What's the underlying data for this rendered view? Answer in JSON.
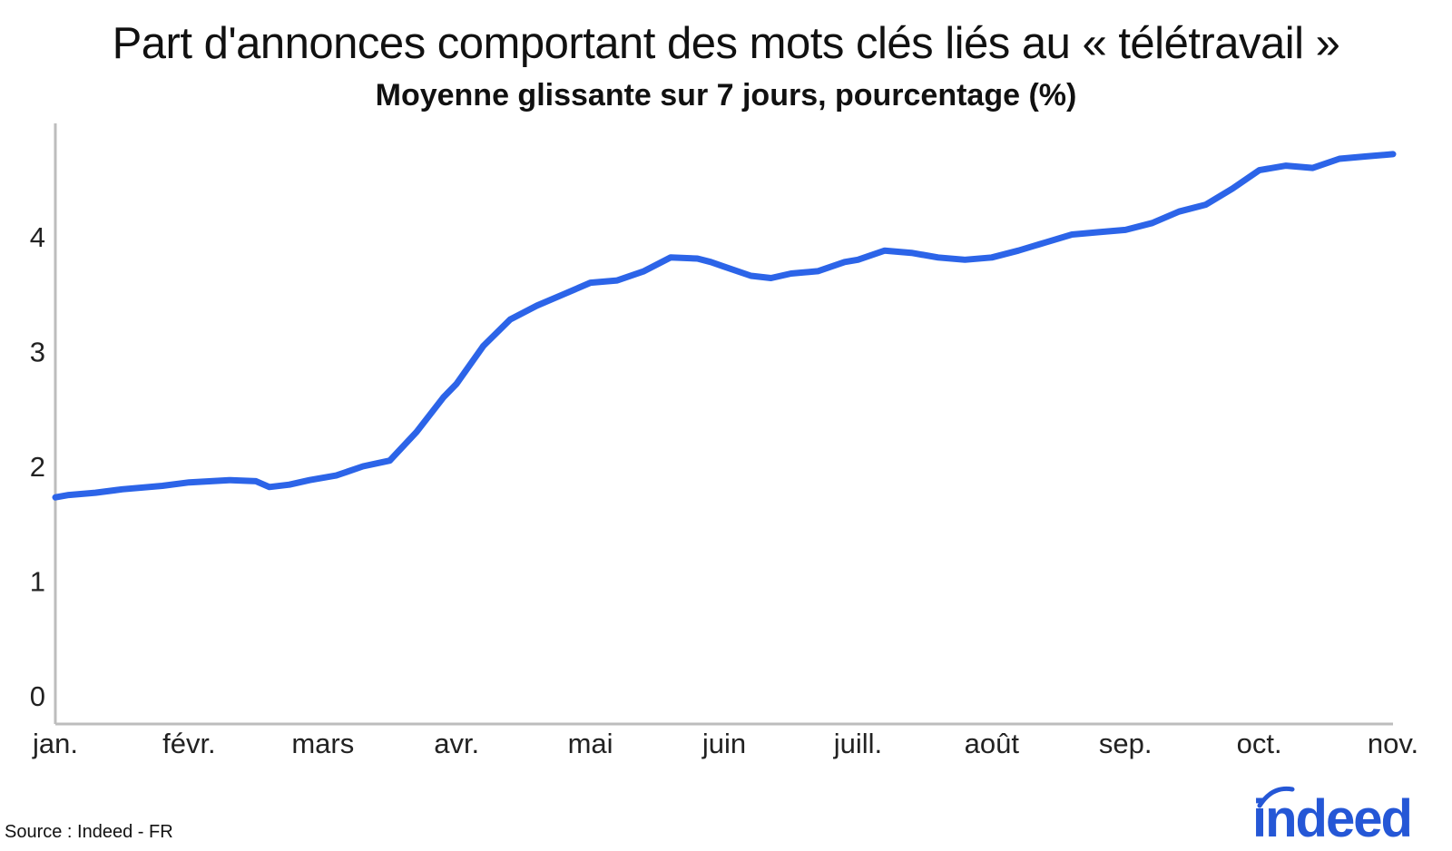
{
  "header": {
    "title": "Part d'annonces comportant des mots clés liés au « télétravail »",
    "subtitle": "Moyenne glissante sur 7 jours, pourcentage (%)"
  },
  "footer": {
    "source": "Source : Indeed - FR",
    "logo_text": "indeed"
  },
  "colors": {
    "line": "#2c64e8",
    "axis": "#bdbdbd",
    "logo": "#2557d6"
  },
  "chart_data": {
    "type": "line",
    "title": "Part d'annonces comportant des mots clés liés au « télétravail »",
    "subtitle": "Moyenne glissante sur 7 jours, pourcentage (%)",
    "xlabel": "",
    "ylabel": "",
    "ylim": [
      0,
      5
    ],
    "yticks": [
      0,
      1,
      2,
      3,
      4
    ],
    "grid": false,
    "x_ticks": [
      "jan.",
      "févr.",
      "mars",
      "avr.",
      "mai",
      "juin",
      "juill.",
      "août",
      "sep.",
      "oct.",
      "nov."
    ],
    "series": [
      {
        "x": [
          0,
          0.1,
          0.3,
          0.5,
          0.8,
          1.0,
          1.3,
          1.5,
          1.6,
          1.75,
          1.9,
          2.1,
          2.3,
          2.5,
          2.7,
          2.9,
          3.0,
          3.2,
          3.4,
          3.6,
          3.8,
          4.0,
          4.2,
          4.4,
          4.6,
          4.8,
          4.9,
          5.0,
          5.2,
          5.35,
          5.5,
          5.7,
          5.9,
          6.0,
          6.2,
          6.4,
          6.6,
          6.8,
          7.0,
          7.2,
          7.4,
          7.6,
          7.8,
          8.0,
          8.2,
          8.4,
          8.6,
          8.8,
          9.0,
          9.2,
          9.4,
          9.6,
          9.8,
          10.0
        ],
        "y": [
          1.73,
          1.75,
          1.77,
          1.8,
          1.83,
          1.86,
          1.88,
          1.87,
          1.82,
          1.84,
          1.88,
          1.92,
          2.0,
          2.05,
          2.3,
          2.6,
          2.72,
          3.05,
          3.28,
          3.4,
          3.5,
          3.6,
          3.62,
          3.7,
          3.82,
          3.81,
          3.78,
          3.74,
          3.66,
          3.64,
          3.68,
          3.7,
          3.78,
          3.8,
          3.88,
          3.86,
          3.82,
          3.8,
          3.82,
          3.88,
          3.95,
          4.02,
          4.04,
          4.06,
          4.12,
          4.22,
          4.28,
          4.42,
          4.58,
          4.62,
          4.6,
          4.68,
          4.7,
          4.72
        ]
      }
    ]
  }
}
